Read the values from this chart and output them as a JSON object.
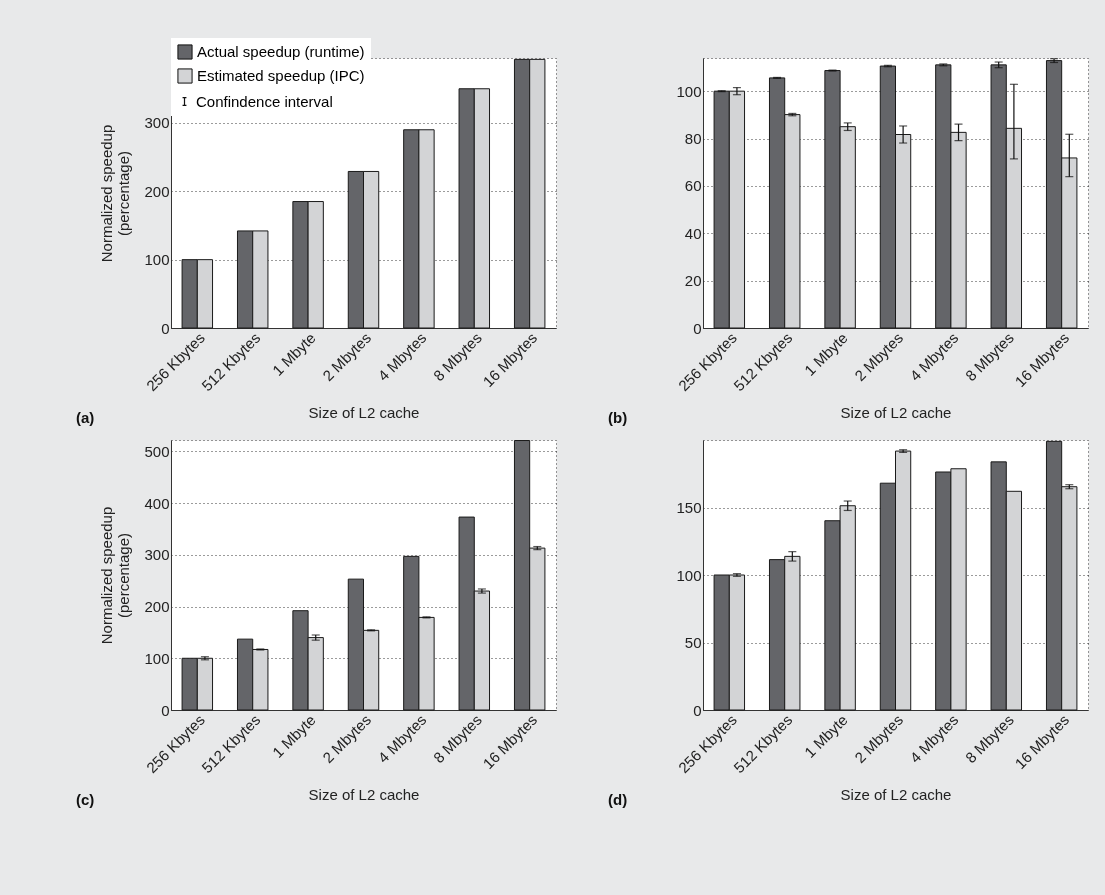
{
  "chart_data": [
    {
      "type": "bar",
      "categories": [
        "256 Kbytes",
        "512 Kbytes",
        "1 Mbyte",
        "2 Mbytes",
        "4 Mbytes",
        "8 Mbytes",
        "16 Mbytes"
      ],
      "xlabel": "Size of L2 cache",
      "ylabel": "Normalized speedup\n(percentage)",
      "ylim": [
        0,
        395
      ],
      "yticks": [
        0,
        100,
        200,
        300
      ],
      "grid": "y",
      "legend": "top left",
      "annotations": [
        "(a)",
        "Confindence interval"
      ],
      "series": [
        {
          "name": "Actual speedup (runtime)",
          "color": "#646569",
          "values": [
            100,
            142,
            185,
            229,
            290,
            350,
            393
          ]
        },
        {
          "name": "Estimated speedup (IPC)",
          "color": "#d3d4d6",
          "values": [
            100,
            142,
            185,
            229,
            290,
            350,
            393
          ]
        }
      ]
    },
    {
      "type": "bar",
      "categories": [
        "256 Kbytes",
        "512 Kbytes",
        "1 Mbyte",
        "2 Mbytes",
        "4 Mbytes",
        "8 Mbytes",
        "16 Mbytes"
      ],
      "xlabel": "Size of L2 cache",
      "ylim": [
        0,
        114
      ],
      "yticks": [
        0,
        20,
        40,
        60,
        80,
        100
      ],
      "grid": "y",
      "annotations": [
        "(b)"
      ],
      "series": [
        {
          "color": "#646569",
          "values": [
            100,
            105.6,
            108.7,
            110.6,
            111.1,
            111.1,
            112.9
          ],
          "errors": [
            0.2,
            0.2,
            0.2,
            0.3,
            0.4,
            1.2,
            0.8
          ]
        },
        {
          "color": "#d3d4d6",
          "values": [
            100,
            90.1,
            85,
            81.7,
            82.6,
            84.3,
            71.8
          ],
          "errors": [
            1.5,
            0.5,
            1.6,
            3.6,
            3.5,
            [
              71.4,
              102.9
            ],
            [
              63.9,
              81.8
            ]
          ]
        }
      ]
    },
    {
      "type": "bar",
      "categories": [
        "256 Kbytes",
        "512 Kbytes",
        "1 Mbyte",
        "2 Mbytes",
        "4 Mbytes",
        "8 Mbytes",
        "16 Mbytes"
      ],
      "xlabel": "Size of L2 cache",
      "ylabel": "Normalized speedup\n(percentage)",
      "ylim": [
        0,
        522
      ],
      "yticks": [
        0,
        100,
        200,
        300,
        400,
        500
      ],
      "grid": "y",
      "annotations": [
        "(c)"
      ],
      "series": [
        {
          "color": "#646569",
          "values": [
            100,
            137,
            192,
            253,
            297,
            373,
            521
          ]
        },
        {
          "color": "#d3d4d6",
          "values": [
            100,
            117,
            140,
            154,
            179,
            230,
            313
          ],
          "errors": [
            3,
            1,
            5,
            1,
            1,
            4,
            3
          ]
        }
      ]
    },
    {
      "type": "bar",
      "categories": [
        "256 Kbytes",
        "512 Kbytes",
        "1 Mbyte",
        "2 Mbytes",
        "4 Mbytes",
        "8 Mbytes",
        "16 Mbytes"
      ],
      "xlabel": "Size of L2 cache",
      "ylim": [
        0,
        200
      ],
      "yticks": [
        0,
        50,
        100,
        150
      ],
      "grid": "y",
      "annotations": [
        "(d)"
      ],
      "series": [
        {
          "color": "#646569",
          "values": [
            100,
            111.4,
            140.2,
            168,
            176.3,
            183.8,
            199
          ]
        },
        {
          "color": "#d3d4d6",
          "values": [
            100,
            113.8,
            151.3,
            191.8,
            178.7,
            162,
            165.4
          ],
          "errors": [
            1,
            3.5,
            3.5,
            1,
            null,
            null,
            1.5
          ]
        }
      ]
    }
  ]
}
